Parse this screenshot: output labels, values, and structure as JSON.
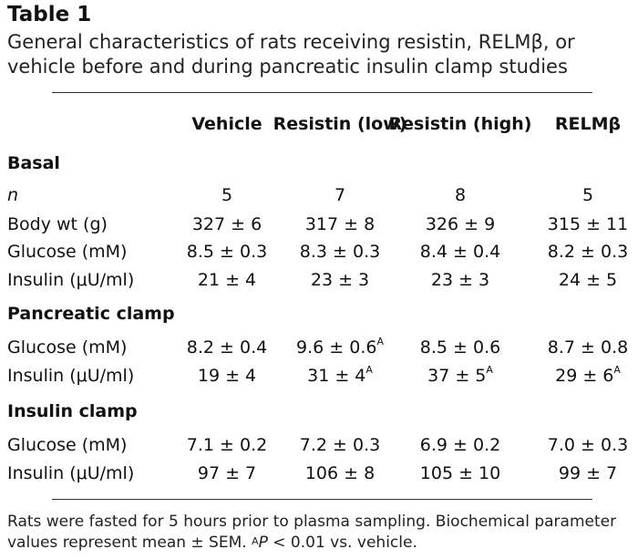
{
  "table": {
    "title": "Table 1",
    "caption": "General characteristics of rats receiving resistin, RELMβ, or vehicle before and during pancreatic insulin clamp studies",
    "columns": [
      "Vehicle",
      "Resistin (low)",
      "Resistin (high)",
      "RELMβ"
    ],
    "sections": [
      {
        "name": "Basal",
        "rows": [
          {
            "label": "n",
            "values": [
              "5",
              "7",
              "8",
              "5"
            ],
            "sup": [
              "",
              "",
              "",
              ""
            ]
          },
          {
            "label": "Body wt (g)",
            "values": [
              "327 ± 6",
              "317 ± 8",
              "326 ± 9",
              "315 ± 11"
            ],
            "sup": [
              "",
              "",
              "",
              ""
            ]
          },
          {
            "label": "Glucose (mM)",
            "values": [
              "8.5 ± 0.3",
              "8.3 ± 0.3",
              "8.4 ± 0.4",
              "8.2 ± 0.3"
            ],
            "sup": [
              "",
              "",
              "",
              ""
            ]
          },
          {
            "label": "Insulin (μU/ml)",
            "values": [
              "21 ± 4",
              "23 ± 3",
              "23 ± 3",
              "24 ± 5"
            ],
            "sup": [
              "",
              "",
              "",
              ""
            ]
          }
        ]
      },
      {
        "name": "Pancreatic clamp",
        "rows": [
          {
            "label": "Glucose (mM)",
            "values": [
              "8.2 ± 0.4",
              "9.6 ± 0.6",
              "8.5 ± 0.6",
              "8.7 ± 0.8"
            ],
            "sup": [
              "",
              "A",
              "",
              ""
            ]
          },
          {
            "label": "Insulin (μU/ml)",
            "values": [
              "19 ± 4",
              "31 ± 4",
              "37 ± 5",
              "29 ± 6"
            ],
            "sup": [
              "",
              "A",
              "A",
              "A"
            ]
          }
        ]
      },
      {
        "name": "Insulin clamp",
        "rows": [
          {
            "label": "Glucose (mM)",
            "values": [
              "7.1 ± 0.2",
              "7.2 ± 0.3",
              "6.9 ± 0.2",
              "7.0 ± 0.3"
            ],
            "sup": [
              "",
              "",
              "",
              ""
            ]
          },
          {
            "label": "Insulin (μU/ml)",
            "values": [
              "97 ± 7",
              "106 ± 8",
              "105 ± 10",
              "99 ± 7"
            ],
            "sup": [
              "",
              "",
              "",
              ""
            ]
          }
        ]
      }
    ],
    "footnote": {
      "text1": "Rats were fasted for 5 hours prior to plasma sampling. Biochemical parameter values represent mean ± SEM. ",
      "sup": "A",
      "p": "P",
      "text2": " < 0.01 vs. vehicle."
    }
  }
}
